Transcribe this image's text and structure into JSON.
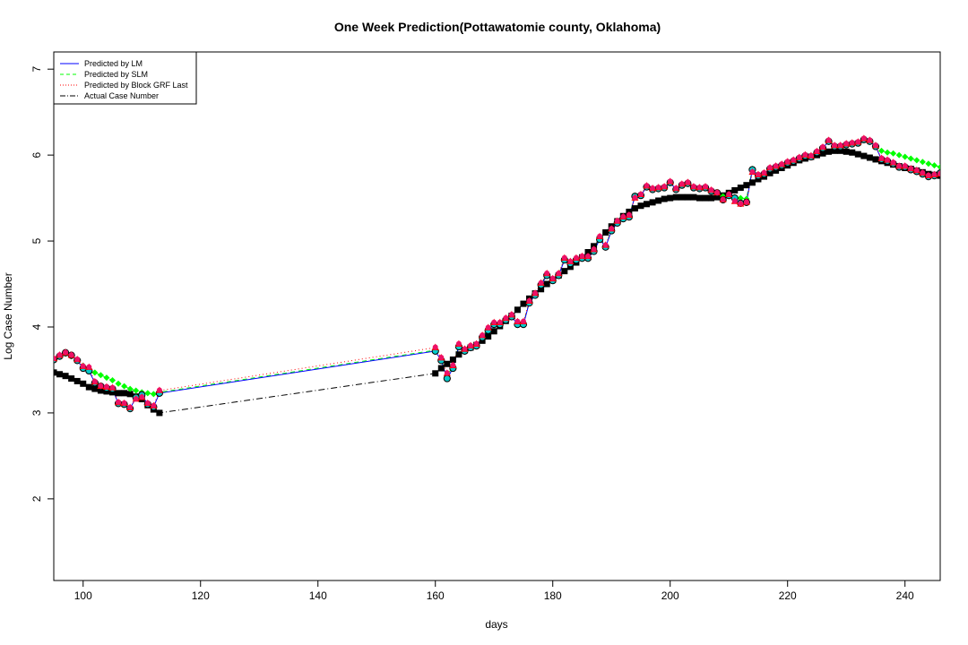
{
  "chart_data": {
    "type": "line",
    "title": "One Week Prediction(Pottawatomie county, Oklahoma)",
    "xlabel": "days",
    "ylabel": "Log Case Number",
    "xlim": [
      95,
      246
    ],
    "ylim": [
      1.05,
      7.2
    ],
    "x_ticks": [
      100,
      120,
      140,
      160,
      180,
      200,
      220,
      240
    ],
    "y_ticks": [
      2,
      3,
      4,
      5,
      6,
      7
    ],
    "grid": false,
    "legend_position": "top-left",
    "legend": [
      {
        "label": "Predicted by LM",
        "color": "#0000ff",
        "line": "solid"
      },
      {
        "label": "Predicted by SLM",
        "color": "#00ff00",
        "line": "dashed"
      },
      {
        "label": "Predicted by Block GRF Last",
        "color": "#ff0000",
        "line": "dotted"
      },
      {
        "label": "Actual Case Number",
        "color": "#000000",
        "line": "dotdash"
      }
    ],
    "x": [
      95,
      96,
      97,
      98,
      99,
      100,
      101,
      102,
      103,
      104,
      105,
      106,
      107,
      108,
      109,
      110,
      111,
      112,
      113,
      160,
      161,
      162,
      163,
      164,
      165,
      166,
      167,
      168,
      169,
      170,
      171,
      172,
      173,
      174,
      175,
      176,
      177,
      178,
      179,
      180,
      181,
      182,
      183,
      184,
      185,
      186,
      187,
      188,
      189,
      190,
      191,
      192,
      193,
      194,
      195,
      196,
      197,
      198,
      199,
      200,
      201,
      202,
      203,
      204,
      205,
      206,
      207,
      208,
      209,
      210,
      211,
      212,
      213,
      214,
      215,
      216,
      217,
      218,
      219,
      220,
      221,
      222,
      223,
      224,
      225,
      226,
      227,
      228,
      229,
      230,
      231,
      232,
      233,
      234,
      235,
      236,
      237,
      238,
      239,
      240,
      241,
      242,
      243,
      244,
      245,
      246
    ],
    "series": [
      {
        "name": "Actual Case Number",
        "color": "#000000",
        "marker": "square",
        "values": [
          3.47,
          3.45,
          3.43,
          3.4,
          3.37,
          3.34,
          3.3,
          3.28,
          3.26,
          3.25,
          3.24,
          3.23,
          3.23,
          3.22,
          3.19,
          3.16,
          3.09,
          3.04,
          3.0,
          3.46,
          3.52,
          3.57,
          3.62,
          3.68,
          3.73,
          3.76,
          3.79,
          3.84,
          3.89,
          3.95,
          4.01,
          4.07,
          4.13,
          4.2,
          4.27,
          4.33,
          4.39,
          4.44,
          4.5,
          4.55,
          4.6,
          4.65,
          4.7,
          4.75,
          4.81,
          4.87,
          4.94,
          5.02,
          5.1,
          5.17,
          5.23,
          5.29,
          5.34,
          5.38,
          5.41,
          5.43,
          5.45,
          5.47,
          5.49,
          5.5,
          5.51,
          5.51,
          5.51,
          5.51,
          5.5,
          5.5,
          5.5,
          5.51,
          5.53,
          5.56,
          5.59,
          5.62,
          5.65,
          5.68,
          5.72,
          5.75,
          5.79,
          5.82,
          5.85,
          5.88,
          5.91,
          5.94,
          5.96,
          5.98,
          6.0,
          6.02,
          6.04,
          6.05,
          6.05,
          6.04,
          6.03,
          6.01,
          5.99,
          5.97,
          5.95,
          5.93,
          5.91,
          5.89,
          5.87,
          5.85,
          5.84,
          5.82,
          5.8,
          5.78,
          5.77,
          5.76
        ]
      },
      {
        "name": "Predicted by LM",
        "color": "#0000ff",
        "marker": "circle",
        "values": [
          3.62,
          3.66,
          3.7,
          3.67,
          3.61,
          3.52,
          3.49,
          3.35,
          3.31,
          3.29,
          3.28,
          3.11,
          3.1,
          3.05,
          3.18,
          3.21,
          3.1,
          3.07,
          3.23,
          3.72,
          3.61,
          3.4,
          3.52,
          3.77,
          3.72,
          3.76,
          3.78,
          3.88,
          3.96,
          4.03,
          4.03,
          4.08,
          4.12,
          4.03,
          4.03,
          4.28,
          4.37,
          4.49,
          4.6,
          4.54,
          4.6,
          4.78,
          4.74,
          4.78,
          4.8,
          4.8,
          4.88,
          5.02,
          4.93,
          5.12,
          5.21,
          5.26,
          5.28,
          5.52,
          5.53,
          5.63,
          5.6,
          5.61,
          5.62,
          5.68,
          5.6,
          5.65,
          5.67,
          5.62,
          5.61,
          5.62,
          5.58,
          5.56,
          5.48,
          5.53,
          5.5,
          5.44,
          5.45,
          5.83,
          5.76,
          5.78,
          5.84,
          5.86,
          5.88,
          5.91,
          5.93,
          5.96,
          5.99,
          5.98,
          6.03,
          6.08,
          6.16,
          6.1,
          6.1,
          6.12,
          6.13,
          6.14,
          6.18,
          6.16,
          6.1,
          5.95,
          5.93,
          5.9,
          5.86,
          5.86,
          5.83,
          5.81,
          5.78,
          5.75,
          5.76,
          5.79
        ]
      },
      {
        "name": "Predicted by SLM",
        "color": "#00ff00",
        "marker": "diamond",
        "values": [
          3.62,
          3.67,
          3.69,
          3.66,
          3.61,
          3.55,
          3.51,
          3.47,
          3.44,
          3.41,
          3.38,
          3.34,
          3.31,
          3.28,
          3.26,
          3.24,
          3.23,
          3.22,
          3.24,
          3.73,
          3.62,
          3.43,
          3.55,
          3.78,
          3.73,
          3.77,
          3.79,
          3.89,
          3.97,
          4.04,
          4.04,
          4.09,
          4.13,
          4.04,
          4.04,
          4.29,
          4.38,
          4.5,
          4.61,
          4.55,
          4.61,
          4.79,
          4.75,
          4.79,
          4.81,
          4.81,
          4.89,
          5.03,
          4.94,
          5.13,
          5.22,
          5.27,
          5.29,
          5.53,
          5.54,
          5.64,
          5.61,
          5.62,
          5.63,
          5.69,
          5.61,
          5.66,
          5.68,
          5.63,
          5.62,
          5.63,
          5.59,
          5.57,
          5.52,
          5.52,
          5.51,
          5.5,
          5.49,
          5.84,
          5.77,
          5.79,
          5.85,
          5.87,
          5.89,
          5.92,
          5.94,
          5.97,
          6.0,
          5.99,
          6.04,
          6.09,
          6.17,
          6.11,
          6.11,
          6.13,
          6.14,
          6.15,
          6.19,
          6.17,
          6.11,
          6.05,
          6.03,
          6.02,
          6.0,
          5.98,
          5.96,
          5.94,
          5.92,
          5.9,
          5.88,
          5.86
        ]
      },
      {
        "name": "Predicted by Block GRF Last",
        "color": "#ff0000",
        "marker": "triangle",
        "values": [
          3.63,
          3.67,
          3.7,
          3.67,
          3.62,
          3.54,
          3.53,
          3.36,
          3.31,
          3.3,
          3.29,
          3.12,
          3.11,
          3.06,
          3.16,
          3.18,
          3.11,
          3.08,
          3.26,
          3.76,
          3.64,
          3.46,
          3.55,
          3.8,
          3.74,
          3.78,
          3.8,
          3.9,
          3.99,
          4.05,
          4.05,
          4.1,
          4.14,
          4.06,
          4.06,
          4.3,
          4.39,
          4.51,
          4.62,
          4.56,
          4.62,
          4.8,
          4.76,
          4.8,
          4.82,
          4.82,
          4.9,
          5.05,
          4.95,
          5.14,
          5.23,
          5.28,
          5.3,
          5.5,
          5.54,
          5.64,
          5.61,
          5.62,
          5.63,
          5.69,
          5.61,
          5.66,
          5.68,
          5.63,
          5.62,
          5.63,
          5.59,
          5.56,
          5.48,
          5.54,
          5.46,
          5.43,
          5.45,
          5.8,
          5.77,
          5.79,
          5.85,
          5.87,
          5.89,
          5.92,
          5.94,
          5.97,
          6.0,
          5.99,
          6.04,
          6.09,
          6.17,
          6.11,
          6.11,
          6.13,
          6.14,
          6.15,
          6.19,
          6.17,
          6.11,
          5.96,
          5.94,
          5.91,
          5.87,
          5.87,
          5.84,
          5.82,
          5.79,
          5.76,
          5.77,
          5.78
        ]
      }
    ]
  }
}
